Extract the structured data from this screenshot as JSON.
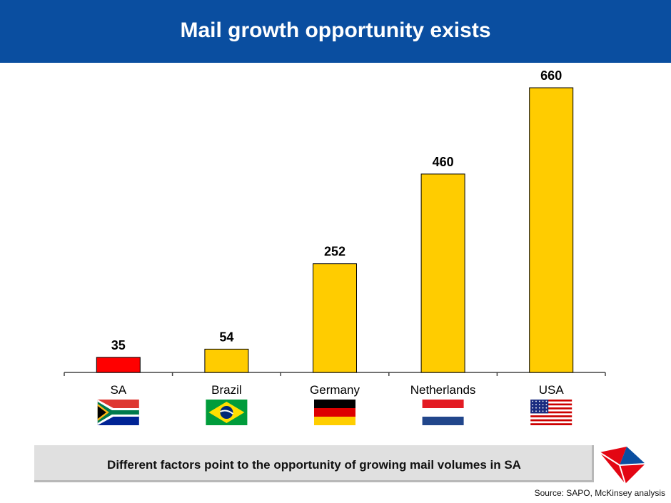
{
  "header": {
    "title": "Mail growth opportunity exists"
  },
  "chart_data": {
    "type": "bar",
    "categories": [
      "SA",
      "Brazil",
      "Germany",
      "Netherlands",
      "USA"
    ],
    "values": [
      35,
      54,
      252,
      460,
      660
    ],
    "bar_colors": [
      "#ff0000",
      "#ffcc00",
      "#ffcc00",
      "#ffcc00",
      "#ffcc00"
    ],
    "ylim": [
      0,
      700
    ],
    "grid": false,
    "title": "",
    "xlabel": "",
    "ylabel": ""
  },
  "flags": [
    "south-africa-flag-icon",
    "brazil-flag-icon",
    "germany-flag-icon",
    "netherlands-flag-icon",
    "usa-flag-icon"
  ],
  "banner": {
    "text": "Different factors point to the opportunity of growing mail volumes in SA"
  },
  "source": "Source: SAPO, McKinsey analysis",
  "colors": {
    "header_bg": "#0a4ea0",
    "accent_bar": "#ffcc00",
    "highlight_bar": "#ff0000"
  }
}
